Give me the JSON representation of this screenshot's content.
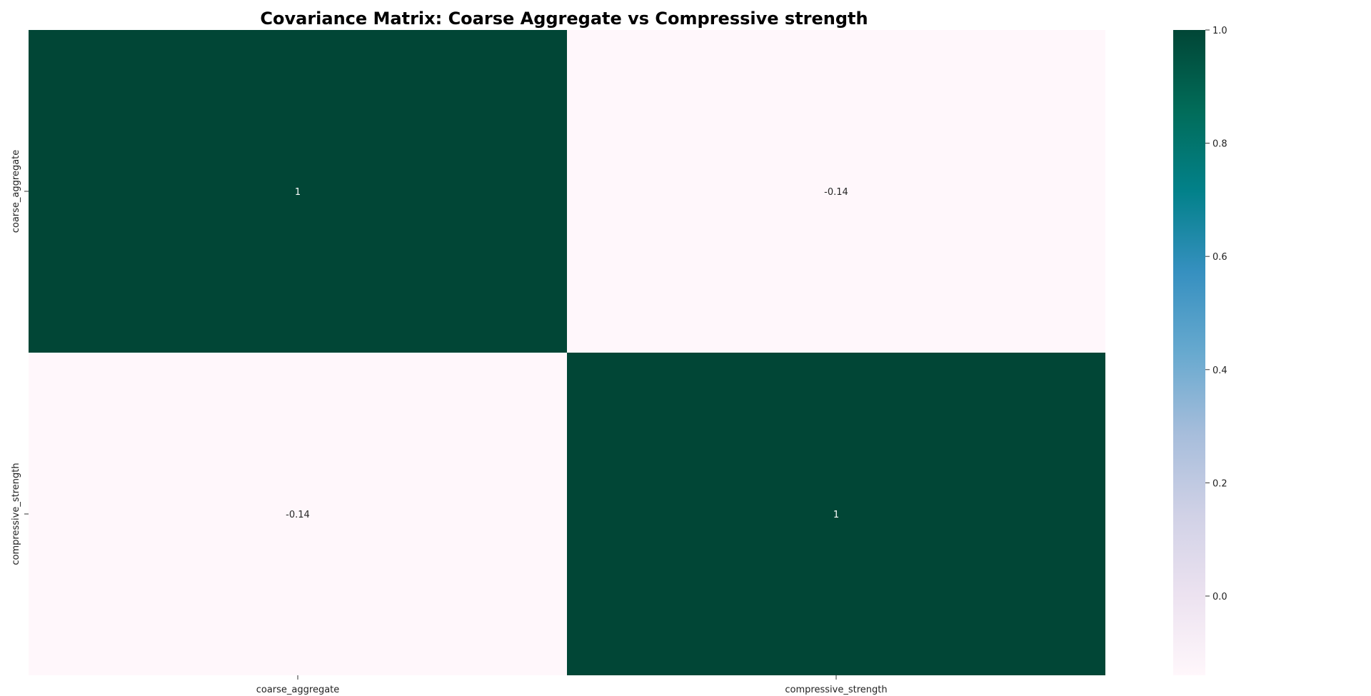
{
  "chart_data": {
    "type": "heatmap",
    "title": "Covariance Matrix: Coarse Aggregate vs Compressive strength",
    "xlabel": "",
    "ylabel": "",
    "x_categories": [
      "coarse_aggregate",
      "compressive_strength"
    ],
    "y_categories": [
      "coarse_aggregate",
      "compressive_strength"
    ],
    "values": [
      [
        1,
        -0.14
      ],
      [
        -0.14,
        1
      ]
    ],
    "annotations": [
      [
        "1",
        "-0.14"
      ],
      [
        "-0.14",
        "1"
      ]
    ],
    "colorbar": {
      "min": -0.14,
      "max": 1.0,
      "ticks": [
        0.0,
        0.2,
        0.4,
        0.6,
        0.8,
        1.0
      ],
      "tick_labels": [
        "0.0",
        "0.2",
        "0.4",
        "0.6",
        "0.8",
        "1.0"
      ],
      "colormap": "PuBuGn",
      "colors": [
        "#fff7fb",
        "#ece2f0",
        "#d0d1e6",
        "#a6bddb",
        "#67a9cf",
        "#3690c0",
        "#02818a",
        "#016c59",
        "#014636"
      ]
    },
    "grid": false,
    "legend": "colorbar-right"
  }
}
